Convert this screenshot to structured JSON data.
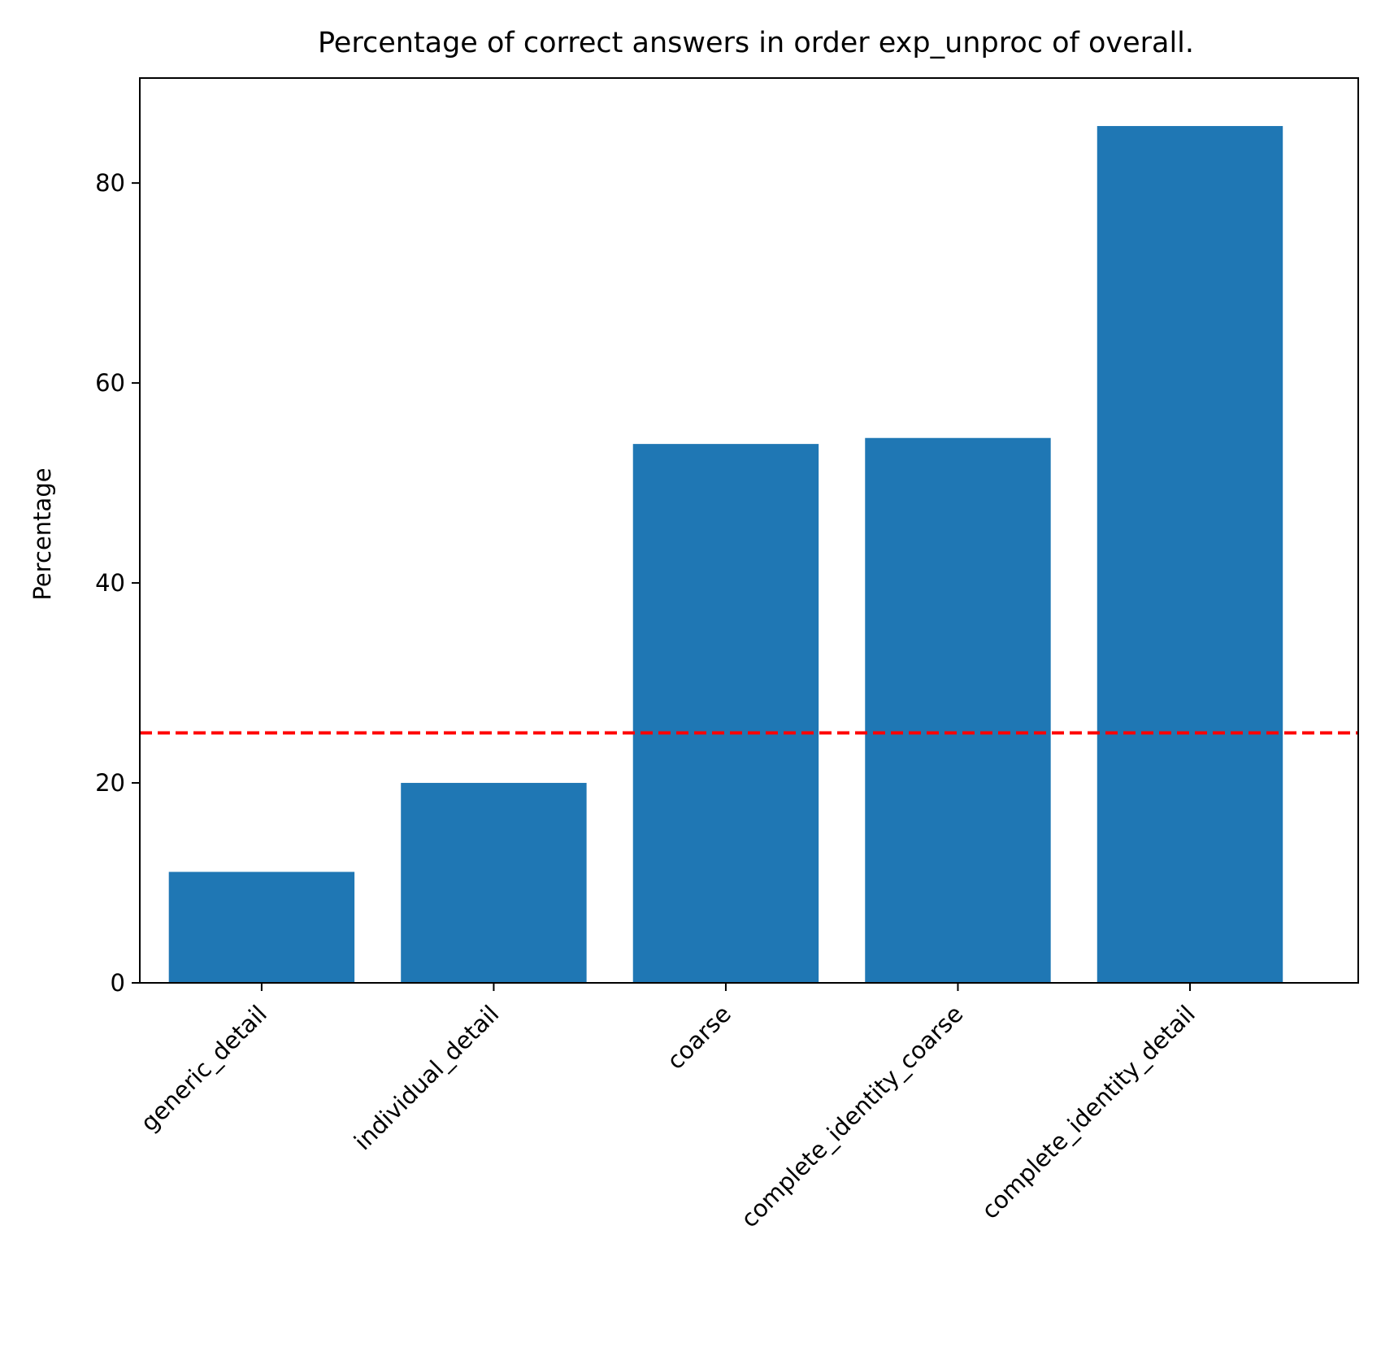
{
  "chart_data": {
    "type": "bar",
    "title": "Percentage of correct answers in order exp_unproc of overall.",
    "xlabel": "",
    "ylabel": "Percentage",
    "categories": [
      "generic_detail",
      "individual_detail",
      "coarse",
      "complete_identity_coarse",
      "complete_identity_detail"
    ],
    "values": [
      11.1,
      20.0,
      53.9,
      54.5,
      85.7
    ],
    "ylim": [
      0,
      90.5
    ],
    "yticks": [
      0,
      20,
      40,
      60,
      80
    ],
    "reference_line": {
      "y": 25,
      "style": "dashed",
      "color": "#ff0000"
    },
    "bar_color": "#1f77b4",
    "grid": false,
    "legend": "none"
  }
}
